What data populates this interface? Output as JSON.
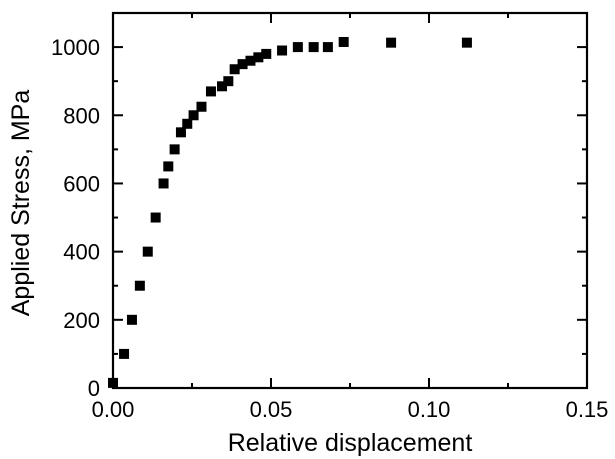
{
  "chart_data": {
    "type": "scatter",
    "title": "",
    "xlabel": "Relative displacement",
    "ylabel": "Applied Stress, MPa",
    "xlim": [
      0.0,
      0.15
    ],
    "ylim": [
      0,
      1100
    ],
    "x_ticks": [
      0.0,
      0.05,
      0.1,
      0.15
    ],
    "x_tick_labels": [
      "0.00",
      "0.05",
      "0.10",
      "0.15"
    ],
    "y_ticks": [
      0,
      200,
      400,
      600,
      800,
      1000
    ],
    "y_tick_labels": [
      "0",
      "200",
      "400",
      "600",
      "800",
      "1000"
    ],
    "grid": false,
    "legend": "none",
    "marker": "square",
    "marker_color": "#000000",
    "series": [
      {
        "points": [
          [
            0.0,
            15
          ],
          [
            0.0035,
            100
          ],
          [
            0.006,
            200
          ],
          [
            0.0085,
            300
          ],
          [
            0.011,
            400
          ],
          [
            0.0135,
            500
          ],
          [
            0.016,
            600
          ],
          [
            0.0175,
            650
          ],
          [
            0.0195,
            700
          ],
          [
            0.0215,
            750
          ],
          [
            0.0235,
            775
          ],
          [
            0.0255,
            800
          ],
          [
            0.028,
            825
          ],
          [
            0.031,
            870
          ],
          [
            0.0345,
            885
          ],
          [
            0.0365,
            900
          ],
          [
            0.0385,
            935
          ],
          [
            0.041,
            950
          ],
          [
            0.0435,
            960
          ],
          [
            0.046,
            970
          ],
          [
            0.0485,
            980
          ],
          [
            0.0535,
            990
          ],
          [
            0.0585,
            1000
          ],
          [
            0.0635,
            1000
          ],
          [
            0.068,
            1000
          ],
          [
            0.073,
            1015
          ],
          [
            0.088,
            1013
          ],
          [
            0.112,
            1013
          ]
        ]
      }
    ]
  }
}
